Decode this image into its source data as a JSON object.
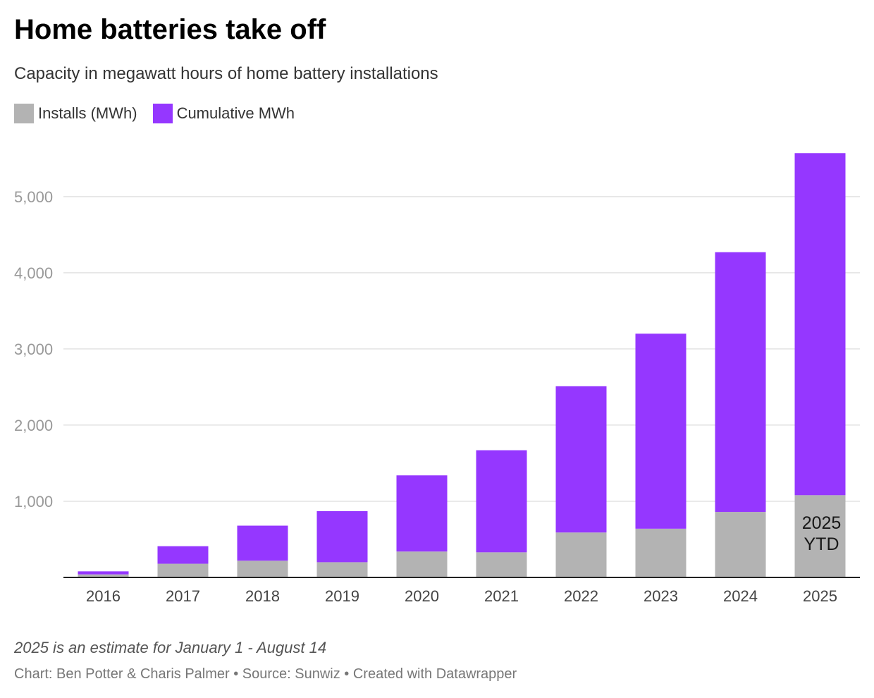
{
  "chart_data": {
    "type": "bar",
    "stacked": true,
    "title": "Home batteries take off",
    "subtitle": "Capacity in megawatt hours of home battery installations",
    "categories": [
      "2016",
      "2017",
      "2018",
      "2019",
      "2020",
      "2021",
      "2022",
      "2023",
      "2024",
      "2025"
    ],
    "series": [
      {
        "name": "Installs (MWh)",
        "color": "#b3b3b3",
        "values": [
          40,
          180,
          220,
          200,
          340,
          330,
          590,
          640,
          860,
          1080
        ]
      },
      {
        "name": "Cumulative MWh",
        "color": "#9537ff",
        "values": [
          40,
          230,
          460,
          670,
          1000,
          1340,
          1920,
          2560,
          3410,
          4490
        ]
      }
    ],
    "ylim": [
      0,
      5600
    ],
    "yticks": [
      1000,
      2000,
      3000,
      4000,
      5000
    ],
    "ytick_labels": [
      "1,000",
      "2,000",
      "3,000",
      "4,000",
      "5,000"
    ],
    "grid": true,
    "legend_position": "top-left",
    "annotation": {
      "category": "2025",
      "lines": [
        "2025",
        "YTD"
      ]
    },
    "note": "2025 is an estimate for January 1 - August 14",
    "credits": "Chart: Ben Potter & Charis Palmer • Source: Sunwiz • Created with Datawrapper"
  }
}
